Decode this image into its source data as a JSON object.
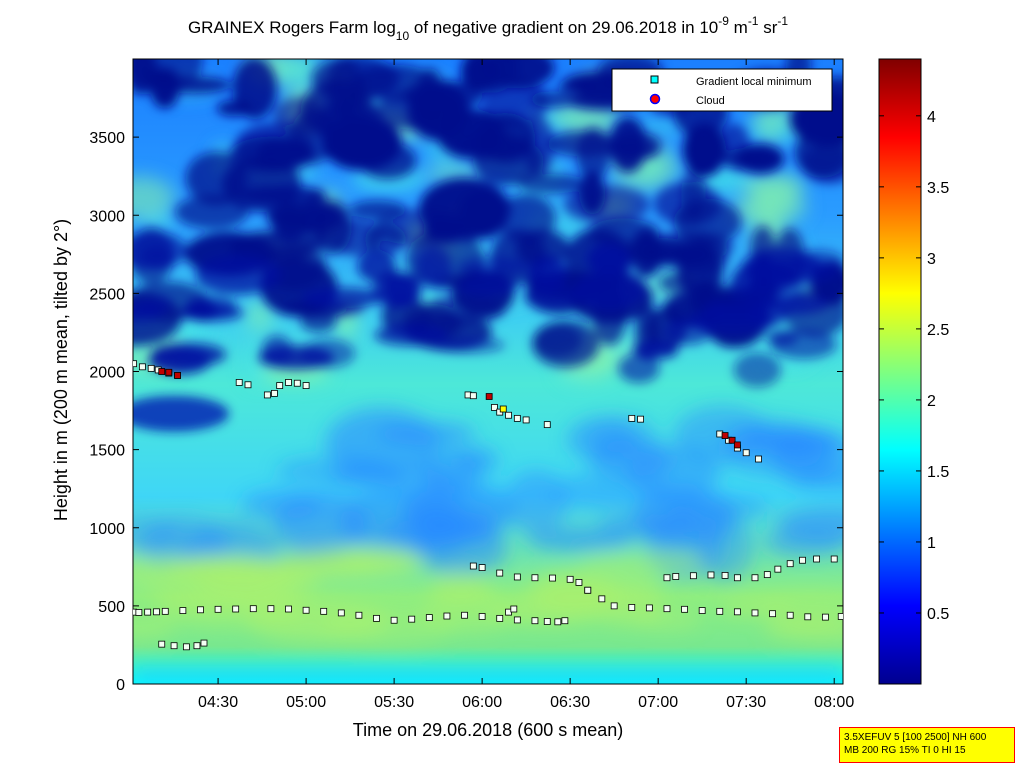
{
  "chart_data": {
    "type": "heatmap",
    "title": {
      "part1": "GRAINEX Rogers Farm log",
      "sub1": "10",
      "part2": " of negative gradient on 29.06.2018 in 10",
      "sup1": "-9",
      "part3": " m",
      "sup2": "-1",
      "part4": " sr",
      "sup3": "-1"
    },
    "xlabel": "Time on 29.06.2018 (600 s mean)",
    "ylabel": "Height in m (200 m mean, tilted by 2°)",
    "xlim_hours": [
      4.0167,
      8.05
    ],
    "ylim": [
      0,
      4000
    ],
    "xticks": [
      {
        "h": 4.5,
        "label": "04:30"
      },
      {
        "h": 5.0,
        "label": "05:00"
      },
      {
        "h": 5.5,
        "label": "05:30"
      },
      {
        "h": 6.0,
        "label": "06:00"
      },
      {
        "h": 6.5,
        "label": "06:30"
      },
      {
        "h": 7.0,
        "label": "07:00"
      },
      {
        "h": 7.5,
        "label": "07:30"
      },
      {
        "h": 8.0,
        "label": "08:00"
      }
    ],
    "yticks": [
      {
        "v": 0,
        "label": "0"
      },
      {
        "v": 500,
        "label": "500"
      },
      {
        "v": 1000,
        "label": "1000"
      },
      {
        "v": 1500,
        "label": "1500"
      },
      {
        "v": 2000,
        "label": "2000"
      },
      {
        "v": 2500,
        "label": "2500"
      },
      {
        "v": 3000,
        "label": "3000"
      },
      {
        "v": 3500,
        "label": "3500"
      }
    ],
    "colorbar": {
      "clim": [
        0,
        4.4
      ],
      "ticks": [
        {
          "v": 0.5,
          "label": "0.5"
        },
        {
          "v": 1,
          "label": "1"
        },
        {
          "v": 1.5,
          "label": "1.5"
        },
        {
          "v": 2,
          "label": "2"
        },
        {
          "v": 2.5,
          "label": "2.5"
        },
        {
          "v": 3,
          "label": "3"
        },
        {
          "v": 3.5,
          "label": "3.5"
        },
        {
          "v": 4,
          "label": "4"
        }
      ]
    },
    "legend": {
      "location": "top-right",
      "items": [
        {
          "label": "Gradient local minimum",
          "marker": "square",
          "color": "#00ffff"
        },
        {
          "label": "Cloud",
          "marker": "circle",
          "color": "#ff0000"
        }
      ]
    },
    "series": [
      {
        "points": [
          [
            4.02,
            460
          ],
          [
            4.05,
            458
          ],
          [
            4.1,
            460
          ],
          [
            4.15,
            462
          ],
          [
            4.2,
            465
          ],
          [
            4.3,
            470
          ],
          [
            4.4,
            475
          ],
          [
            4.5,
            478
          ],
          [
            4.6,
            480
          ],
          [
            4.7,
            482
          ],
          [
            4.8,
            482
          ],
          [
            4.9,
            480
          ],
          [
            5.0,
            472
          ],
          [
            5.1,
            465
          ],
          [
            5.2,
            455
          ],
          [
            5.3,
            440
          ],
          [
            5.4,
            420
          ],
          [
            5.5,
            408
          ],
          [
            5.6,
            415
          ],
          [
            5.7,
            425
          ],
          [
            5.8,
            435
          ],
          [
            5.9,
            440
          ],
          [
            6.0,
            432
          ],
          [
            6.1,
            420
          ],
          [
            6.2,
            410
          ],
          [
            6.3,
            405
          ]
        ]
      },
      {
        "points": [
          [
            6.15,
            460
          ],
          [
            6.18,
            480
          ]
        ]
      },
      {
        "points": [
          [
            6.6,
            600
          ],
          [
            6.68,
            545
          ],
          [
            6.75,
            500
          ],
          [
            6.85,
            490
          ],
          [
            6.95,
            487
          ],
          [
            7.05,
            482
          ],
          [
            7.15,
            478
          ],
          [
            7.25,
            470
          ],
          [
            7.35,
            465
          ],
          [
            7.45,
            462
          ],
          [
            7.55,
            455
          ],
          [
            7.65,
            450
          ],
          [
            7.75,
            440
          ],
          [
            7.85,
            430
          ],
          [
            7.95,
            428
          ],
          [
            8.04,
            432
          ]
        ]
      },
      {
        "points": [
          [
            4.18,
            255
          ],
          [
            4.25,
            245
          ],
          [
            4.32,
            238
          ],
          [
            4.38,
            245
          ],
          [
            4.42,
            262
          ]
        ]
      },
      {
        "points": [
          [
            6.37,
            400
          ],
          [
            6.43,
            398
          ],
          [
            6.47,
            405
          ]
        ]
      },
      {
        "points": [
          [
            5.95,
            755
          ],
          [
            6.0,
            745
          ],
          [
            6.1,
            710
          ],
          [
            6.2,
            685
          ],
          [
            6.3,
            680
          ],
          [
            6.4,
            678
          ],
          [
            6.5,
            670
          ],
          [
            6.55,
            650
          ],
          [
            6.6,
            600
          ]
        ]
      },
      {
        "points": [
          [
            7.05,
            680
          ],
          [
            7.1,
            688
          ],
          [
            7.2,
            693
          ],
          [
            7.3,
            698
          ],
          [
            7.38,
            695
          ],
          [
            7.45,
            680
          ]
        ]
      },
      {
        "points": [
          [
            7.55,
            680
          ],
          [
            7.62,
            700
          ],
          [
            7.68,
            735
          ],
          [
            7.75,
            770
          ],
          [
            7.82,
            792
          ],
          [
            7.9,
            800
          ],
          [
            8.0,
            800
          ]
        ]
      },
      {
        "points": [
          [
            4.02,
            2050
          ],
          [
            4.07,
            2030
          ],
          [
            4.12,
            2020
          ],
          [
            4.16,
            2010
          ],
          [
            4.22,
            1990
          ],
          [
            4.27,
            1975
          ]
        ]
      },
      {
        "points": [
          [
            4.62,
            1930
          ],
          [
            4.67,
            1915
          ]
        ]
      },
      {
        "points": [
          [
            4.78,
            1850
          ],
          [
            4.82,
            1860
          ],
          [
            4.85,
            1910
          ],
          [
            4.9,
            1930
          ],
          [
            4.95,
            1925
          ],
          [
            5.0,
            1910
          ]
        ]
      },
      {
        "points": [
          [
            5.92,
            1850
          ],
          [
            5.95,
            1845
          ]
        ]
      },
      {
        "points": [
          [
            6.07,
            1770
          ],
          [
            6.1,
            1740
          ],
          [
            6.15,
            1720
          ],
          [
            6.2,
            1700
          ],
          [
            6.25,
            1690
          ]
        ]
      },
      {
        "points": [
          [
            6.37,
            1660
          ]
        ]
      },
      {
        "points": [
          [
            6.85,
            1700
          ],
          [
            6.9,
            1695
          ]
        ]
      },
      {
        "points": [
          [
            7.35,
            1600
          ],
          [
            7.4,
            1560
          ],
          [
            7.45,
            1510
          ],
          [
            7.5,
            1480
          ],
          [
            7.57,
            1440
          ]
        ]
      }
    ],
    "clouds": [
      {
        "points": [
          [
            4.18,
            2000
          ],
          [
            4.22,
            1995
          ],
          [
            4.27,
            1975
          ],
          [
            6.04,
            1840
          ],
          [
            6.12,
            1760
          ],
          [
            7.38,
            1590
          ],
          [
            7.42,
            1560
          ],
          [
            7.45,
            1530
          ]
        ]
      }
    ],
    "colors": {
      "dark": "#000080",
      "cyan": "#00ffff",
      "green": "#7fff7f",
      "red": "#ff0000",
      "clouds_yellow": "#ffff00"
    }
  },
  "info_box": {
    "line1": "3.5XEFUV 5 [100 2500] NH 600",
    "line2": "MB 200 RG 15% TI 0 HI 15"
  }
}
